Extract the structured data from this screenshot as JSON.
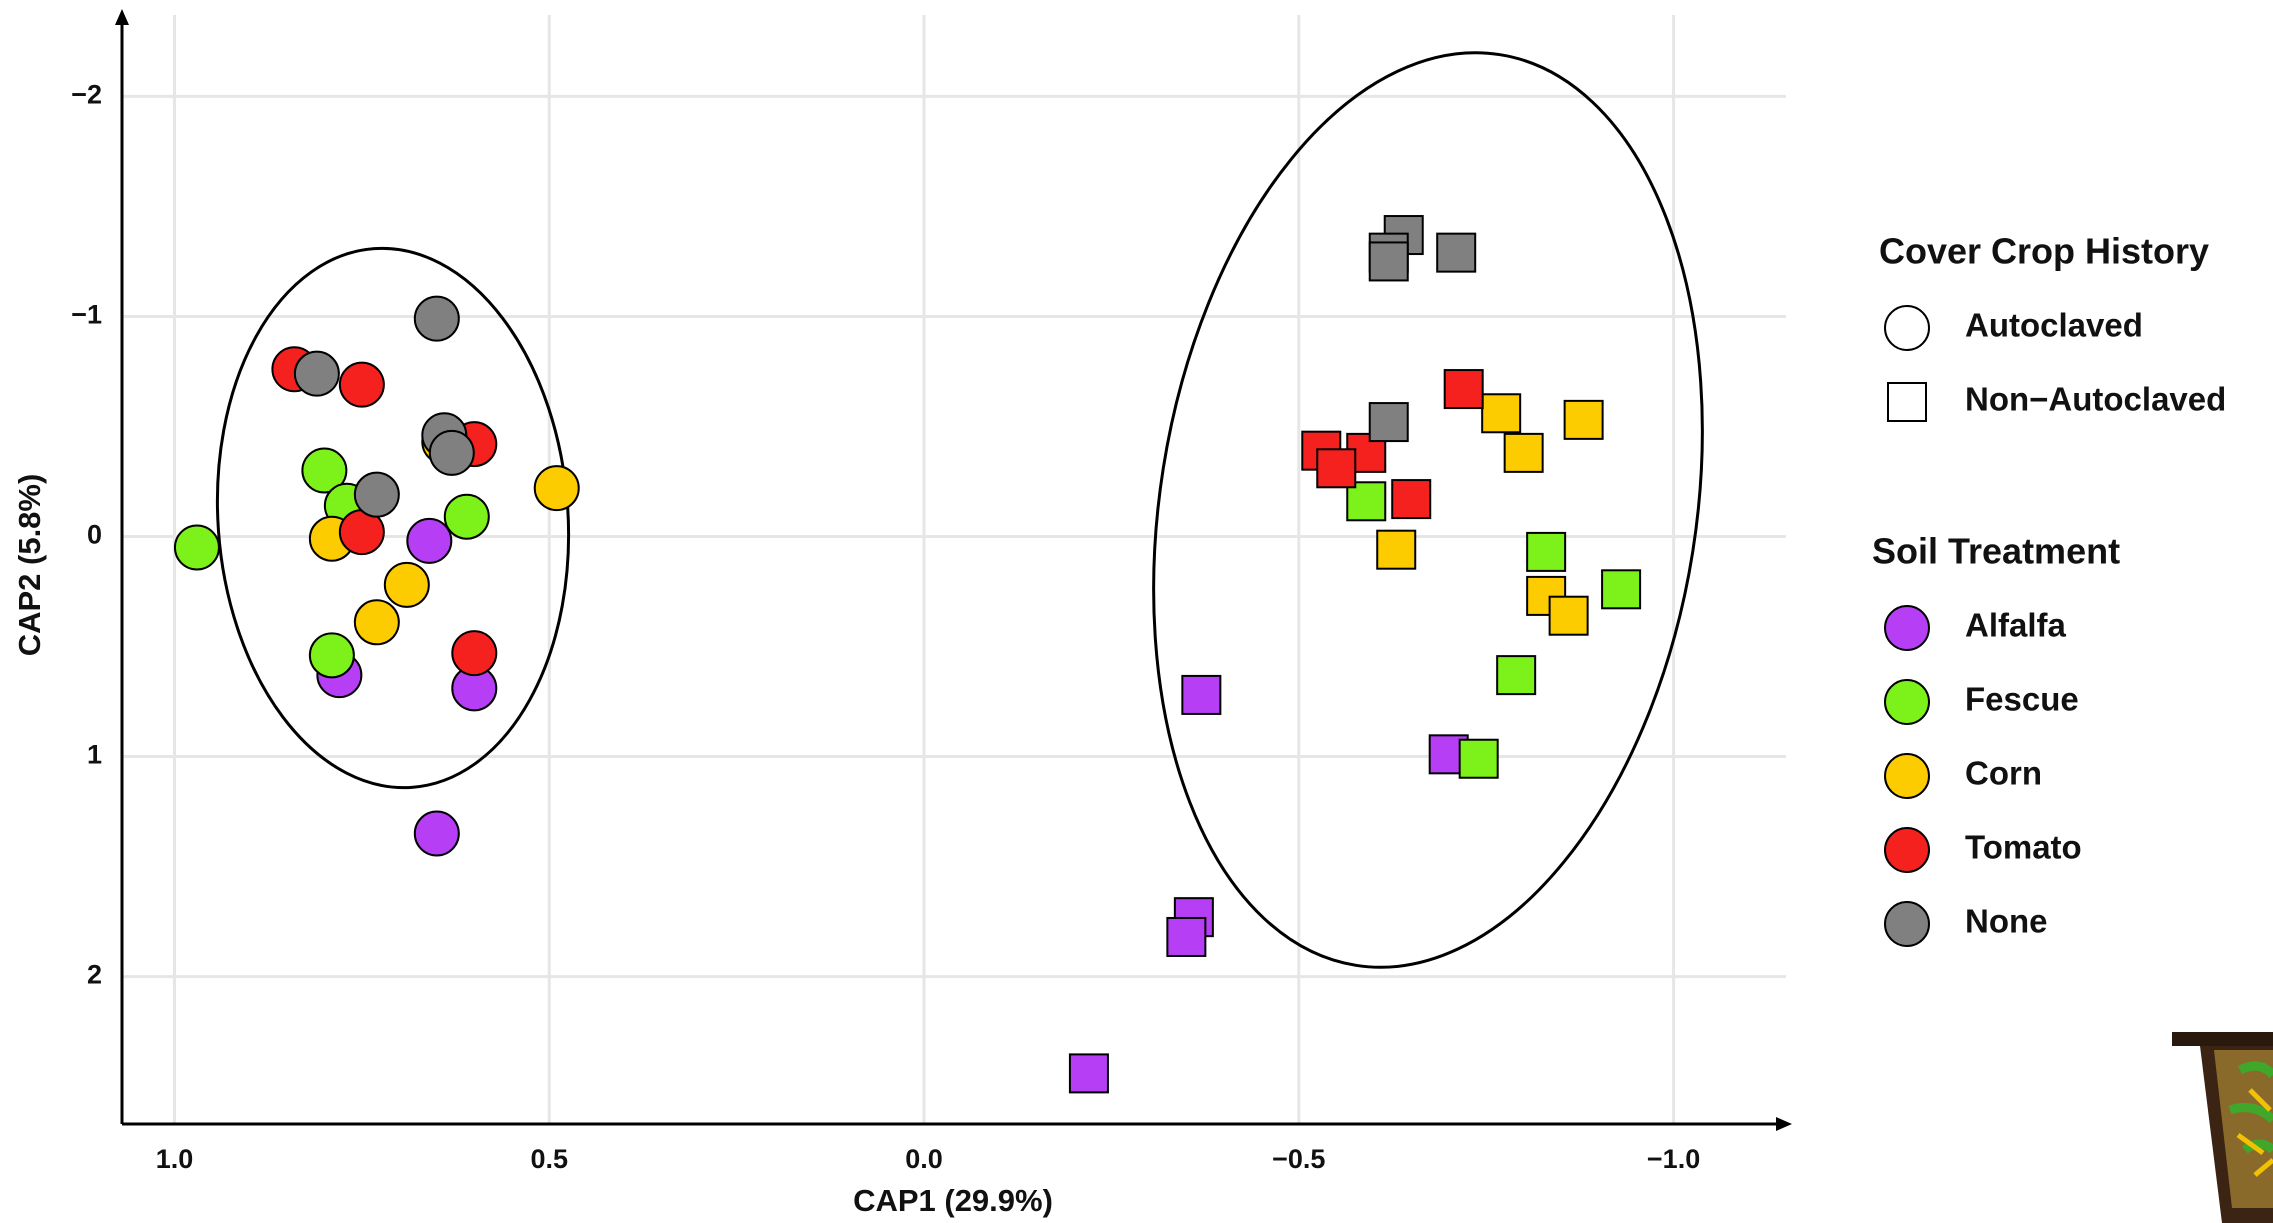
{
  "chart_data": {
    "type": "scatter",
    "x_label": "CAP1 (29.9%)",
    "y_label": "CAP2 (5.8%)",
    "xlim": [
      1.07,
      -1.15
    ],
    "ylim": [
      2.67,
      -2.37
    ],
    "xticks": [
      {
        "value": 1,
        "label": "1.0"
      },
      0.5,
      {
        "value": 0,
        "label": "0.0"
      },
      {
        "value": -0.5,
        "label": "−0.5"
      },
      {
        "value": -1,
        "label": "−1.0"
      }
    ],
    "yticks": [
      {
        "value": -2,
        "label": "−2"
      },
      {
        "value": -1,
        "label": "−1"
      },
      0,
      1,
      2
    ],
    "grid": true,
    "legends": [
      {
        "title": "Cover Crop History",
        "entries": [
          {
            "label": "Autoclaved",
            "shape": "circle"
          },
          {
            "label": "Non−Autoclaved",
            "shape": "square"
          }
        ]
      },
      {
        "title": "Soil Treatment",
        "entries": [
          {
            "label": "Alfalfa",
            "color": "#b63ff5"
          },
          {
            "label": "Fescue",
            "color": "#7df21a"
          },
          {
            "label": "Corn",
            "color": "#fccc00"
          },
          {
            "label": "Tomato",
            "color": "#f5211f"
          },
          {
            "label": "None",
            "color": "#808080"
          }
        ]
      }
    ],
    "series": [
      {
        "shape": "circle",
        "color": "#b63ff5",
        "x": [
          0.78,
          0.66,
          0.6,
          0.65
        ],
        "y": [
          0.63,
          0.02,
          0.69,
          1.35
        ]
      },
      {
        "shape": "circle",
        "color": "#7df21a",
        "x": [
          0.97,
          0.8,
          0.77,
          0.61,
          0.79
        ],
        "y": [
          0.05,
          -0.3,
          -0.14,
          -0.09,
          0.54
        ]
      },
      {
        "shape": "circle",
        "color": "#fccc00",
        "x": [
          0.49,
          0.64,
          0.79,
          0.69,
          0.73
        ],
        "y": [
          -0.22,
          -0.43,
          0.01,
          0.22,
          0.39
        ]
      },
      {
        "shape": "circle",
        "color": "#f5211f",
        "x": [
          0.84,
          0.75,
          0.6,
          0.75,
          0.6
        ],
        "y": [
          -0.76,
          -0.69,
          -0.42,
          -0.02,
          0.53
        ]
      },
      {
        "shape": "circle",
        "color": "#808080",
        "x": [
          0.65,
          0.81,
          0.64,
          0.63,
          0.73
        ],
        "y": [
          -0.99,
          -0.74,
          -0.46,
          -0.38,
          -0.19
        ]
      },
      {
        "shape": "square",
        "color": "#b63ff5",
        "x": [
          -0.37,
          -0.36,
          -0.35,
          -0.22,
          -0.7
        ],
        "y": [
          0.72,
          1.73,
          1.82,
          2.44,
          0.99
        ]
      },
      {
        "shape": "square",
        "color": "#7df21a",
        "x": [
          -0.59,
          -0.83,
          -0.93,
          -0.79,
          -0.74
        ],
        "y": [
          -0.16,
          0.07,
          0.24,
          0.63,
          1.01
        ]
      },
      {
        "shape": "square",
        "color": "#fccc00",
        "x": [
          -0.77,
          -0.88,
          -0.8,
          -0.63,
          -0.83,
          -0.86
        ],
        "y": [
          -0.56,
          -0.53,
          -0.38,
          0.06,
          0.27,
          0.36
        ]
      },
      {
        "shape": "square",
        "color": "#f5211f",
        "x": [
          -0.72,
          -0.53,
          -0.59,
          -0.55,
          -0.65
        ],
        "y": [
          -0.67,
          -0.39,
          -0.38,
          -0.31,
          -0.17
        ]
      },
      {
        "shape": "square",
        "color": "#808080",
        "x": [
          -0.64,
          -0.62,
          -0.62,
          -0.71,
          -0.62
        ],
        "y": [
          -1.37,
          -1.29,
          -1.25,
          -1.29,
          -0.52
        ]
      }
    ]
  }
}
